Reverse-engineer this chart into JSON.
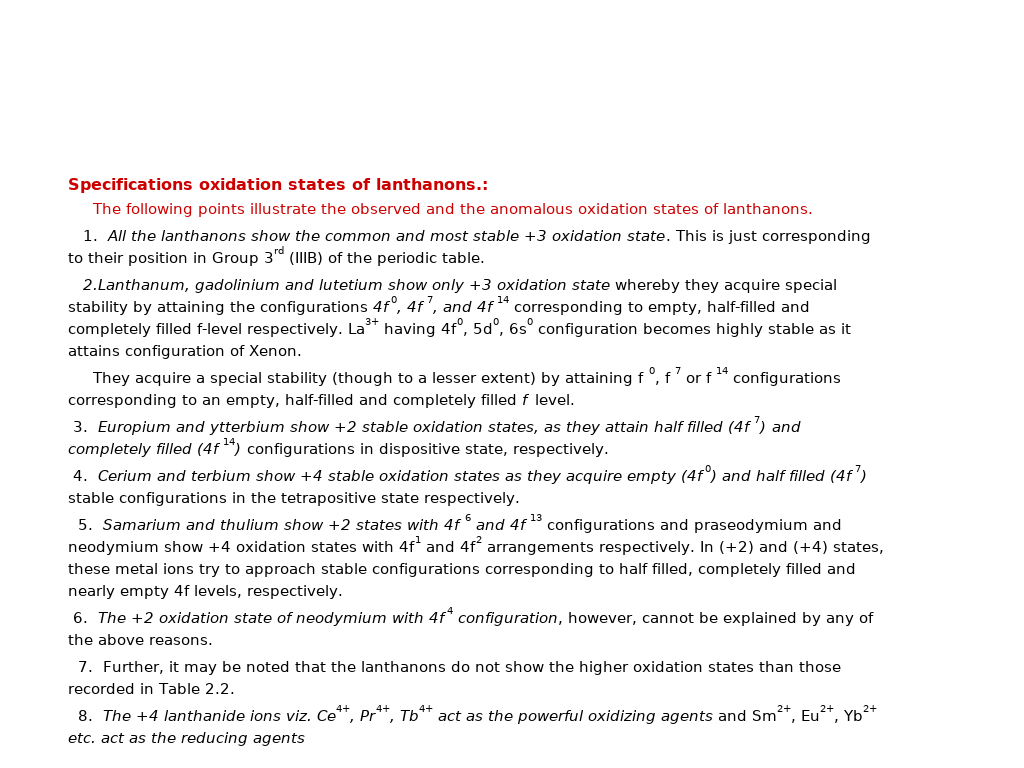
{
  "background_color": "#ffffff",
  "figsize": [
    10.24,
    7.68
  ],
  "dpi": 100,
  "title_color": "#cc0000",
  "text_color": "#000000",
  "font_size": 11.2
}
